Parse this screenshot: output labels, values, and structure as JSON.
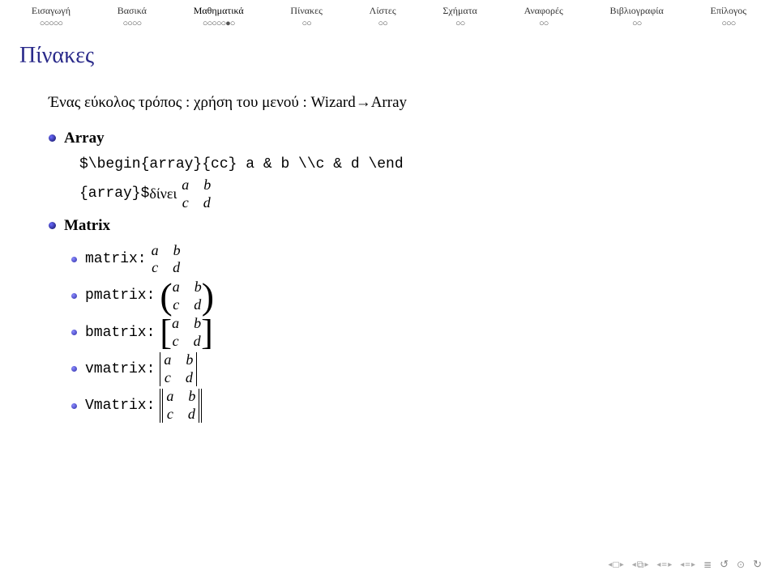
{
  "nav": {
    "items": [
      {
        "label": "Εισαγωγή",
        "dots": "○○○○○"
      },
      {
        "label": "Βασικά",
        "dots": "○○○○"
      },
      {
        "label": "Μαθηματικά",
        "dots": "○○○○○●○",
        "active": true
      },
      {
        "label": "Πίνακες",
        "dots": "○○"
      },
      {
        "label": "Λίστες",
        "dots": "○○"
      },
      {
        "label": "Σχήματα",
        "dots": "○○"
      },
      {
        "label": "Αναφορές",
        "dots": "○○"
      },
      {
        "label": "Βιβλιογραφία",
        "dots": "○○"
      },
      {
        "label": "Επίλογος",
        "dots": "○○○"
      }
    ]
  },
  "title": "Πίνακες",
  "intro": {
    "prefix": "Ένας εύκολος τρόπος : χρήση του μενού : Wizard",
    "arrow": "→",
    "suffix": "Array"
  },
  "items": {
    "array": {
      "label": "Array",
      "code_line1": "$\\begin{array}{cc} a & b \\\\c & d \\end",
      "code_line2_pre": "{array}$",
      "code_line2_post": " δίνει ",
      "matrix": {
        "r1": [
          "a",
          "b"
        ],
        "r2": [
          "c",
          "d"
        ]
      }
    },
    "matrix_section": {
      "label": "Matrix",
      "subitems": [
        {
          "name": "matrix:",
          "delim": "none",
          "r1": [
            "a",
            "b"
          ],
          "r2": [
            "c",
            "d"
          ]
        },
        {
          "name": "pmatrix:",
          "delim": "paren",
          "r1": [
            "a",
            "b"
          ],
          "r2": [
            "c",
            "d"
          ]
        },
        {
          "name": "bmatrix:",
          "delim": "bracket",
          "r1": [
            "a",
            "b"
          ],
          "r2": [
            "c",
            "d"
          ]
        },
        {
          "name": "vmatrix:",
          "delim": "vbar",
          "r1": [
            "a",
            "b"
          ],
          "r2": [
            "c",
            "d"
          ]
        },
        {
          "name": "Vmatrix:",
          "delim": "dvbar",
          "r1": [
            "a",
            "b"
          ],
          "r2": [
            "c",
            "d"
          ]
        }
      ]
    }
  },
  "footer": {
    "groups": [
      "□",
      "⧉",
      "≡",
      "≡",
      "≣"
    ],
    "reload1": "↺",
    "reload2": "↻"
  },
  "colors": {
    "title": "#2a2a8a",
    "bullet_dark": "#2a2a8a",
    "bullet_light": "#6a6aff",
    "background": "#ffffff",
    "text": "#000000",
    "nav_text": "#333333",
    "footer": "#999999"
  }
}
